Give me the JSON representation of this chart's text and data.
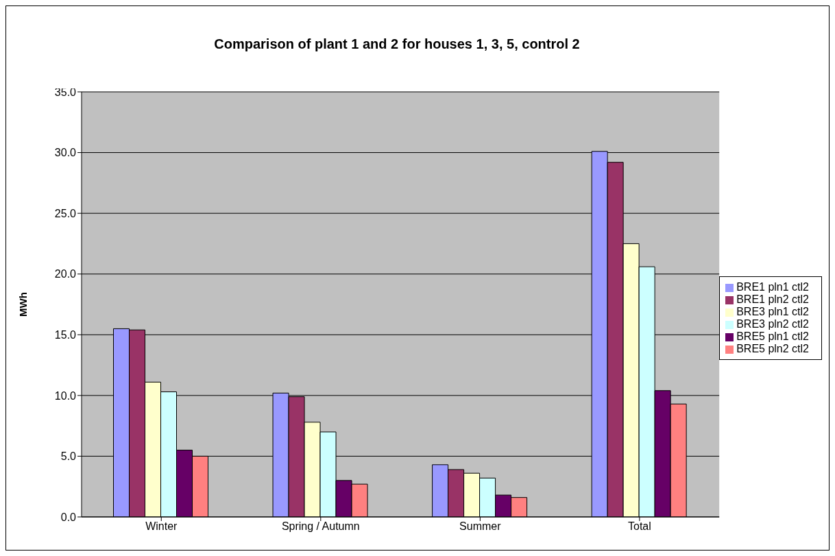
{
  "chart_data": {
    "type": "bar",
    "title": "Comparison of plant 1 and 2 for houses 1, 3, 5, control 2",
    "ylabel": "MWh",
    "categories": [
      "Winter",
      "Spring / Autumn",
      "Summer",
      "Total"
    ],
    "series": [
      {
        "name": "BRE1 pln1 ctl2",
        "color": "#9999ff",
        "values": [
          15.5,
          10.2,
          4.3,
          30.1
        ]
      },
      {
        "name": "BRE1 pln2 ctl2",
        "color": "#993366",
        "values": [
          15.4,
          9.9,
          3.9,
          29.2
        ]
      },
      {
        "name": "BRE3 pln1 ctl2",
        "color": "#ffffcc",
        "values": [
          11.1,
          7.8,
          3.6,
          22.5
        ]
      },
      {
        "name": "BRE3 pln2 ctl2",
        "color": "#ccffff",
        "values": [
          10.3,
          7.0,
          3.2,
          20.6
        ]
      },
      {
        "name": "BRE5 pln1 ctl2",
        "color": "#660066",
        "values": [
          5.5,
          3.0,
          1.8,
          10.4
        ]
      },
      {
        "name": "BRE5 pln2 ctl2",
        "color": "#ff8080",
        "values": [
          5.0,
          2.7,
          1.6,
          9.3
        ]
      }
    ],
    "ylim": [
      0,
      35
    ],
    "yticks": [
      {
        "value": 0,
        "label": "0.0"
      },
      {
        "value": 5,
        "label": "5.0"
      },
      {
        "value": 10,
        "label": "10.0"
      },
      {
        "value": 15,
        "label": "15.0"
      },
      {
        "value": 20,
        "label": "20.0"
      },
      {
        "value": 25,
        "label": "25.0"
      },
      {
        "value": 30,
        "label": "30.0"
      },
      {
        "value": 35,
        "label": "35.0"
      }
    ],
    "grid": "y",
    "legend": "right"
  }
}
